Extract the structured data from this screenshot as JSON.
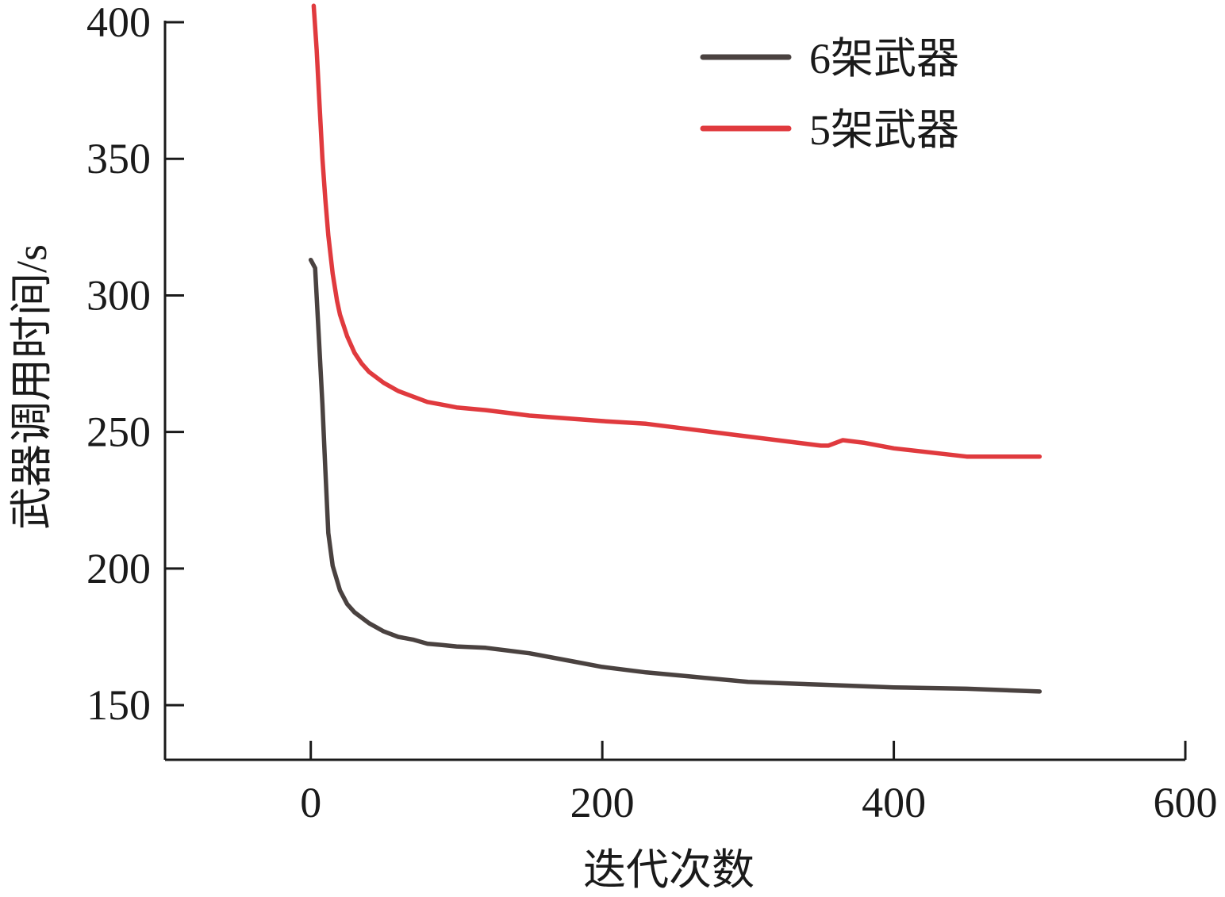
{
  "chart_data": {
    "type": "line",
    "xlabel": "迭代次数",
    "ylabel": "武器调用时间/s",
    "xlim": [
      -100,
      600
    ],
    "ylim": [
      130,
      400
    ],
    "xticks": [
      0,
      200,
      400,
      600
    ],
    "xtick_labels": [
      "0",
      "200",
      "400",
      "600"
    ],
    "yticks": [
      150,
      200,
      250,
      300,
      350,
      400
    ],
    "ytick_labels": [
      "150",
      "200",
      "250",
      "300",
      "350",
      "400"
    ],
    "grid": false,
    "legend_position": "top-right",
    "series": [
      {
        "name": "6架武器",
        "color": "#4a4240",
        "x": [
          0,
          3,
          5,
          8,
          10,
          12,
          15,
          20,
          25,
          30,
          40,
          50,
          60,
          70,
          80,
          90,
          100,
          120,
          150,
          180,
          200,
          230,
          260,
          300,
          350,
          400,
          450,
          500
        ],
        "y": [
          313,
          310,
          290,
          260,
          236,
          213,
          201,
          192,
          187,
          184,
          180,
          177,
          175,
          174,
          172.5,
          172,
          171.5,
          171,
          169,
          166,
          164,
          162,
          160.5,
          158.5,
          157.5,
          156.5,
          156,
          155
        ]
      },
      {
        "name": "5架武器",
        "color": "#e03a3e",
        "x": [
          2,
          4,
          6,
          8,
          10,
          12,
          15,
          18,
          20,
          25,
          30,
          35,
          40,
          50,
          60,
          70,
          80,
          90,
          100,
          120,
          150,
          200,
          230,
          260,
          290,
          320,
          350,
          355,
          365,
          380,
          400,
          450,
          500
        ],
        "y": [
          406,
          390,
          370,
          350,
          335,
          322,
          308,
          298,
          293,
          285,
          279,
          275,
          272,
          268,
          265,
          263,
          261,
          260,
          259,
          258,
          256,
          254,
          253,
          251,
          249,
          247,
          245,
          245,
          247,
          246,
          244,
          241,
          241
        ]
      }
    ]
  }
}
